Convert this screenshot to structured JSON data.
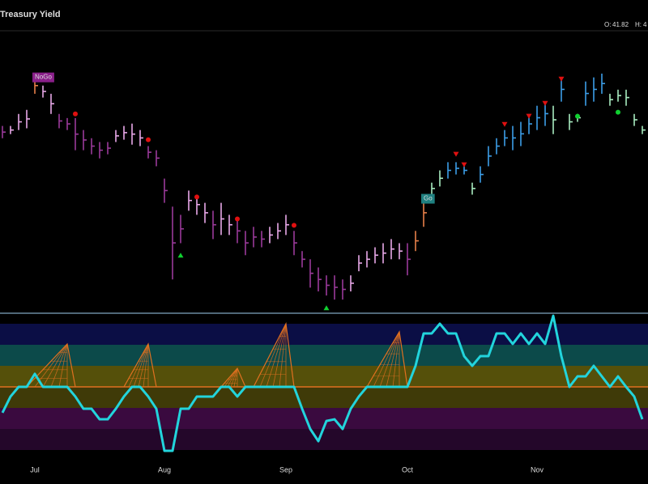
{
  "header": {
    "title": "Treasury Yield",
    "ohlc": [
      {
        "label": "O:",
        "value": 41.82
      },
      {
        "label": "H:",
        "value": "4"
      }
    ]
  },
  "chart_data": [
    {
      "type": "ohlc",
      "ylim": [
        35.45,
        45.0
      ],
      "high": [
        41.8,
        41.8,
        42.21,
        42.35,
        43.46,
        43.18,
        42.9,
        42.21,
        42.07,
        42.07,
        41.66,
        41.38,
        41.25,
        41.25,
        41.66,
        41.8,
        41.88,
        41.66,
        41.11,
        40.97,
        40.0,
        39.04,
        38.76,
        39.59,
        39.45,
        39.17,
        38.9,
        39.17,
        38.76,
        38.62,
        38.21,
        38.35,
        38.21,
        38.35,
        38.48,
        38.76,
        38.21,
        37.52,
        37.24,
        36.96,
        36.69,
        36.69,
        36.55,
        36.69,
        37.38,
        37.52,
        37.65,
        37.79,
        37.93,
        37.79,
        37.79,
        38.21,
        39.31,
        39.86,
        40.28,
        40.56,
        40.56,
        40.42,
        39.86,
        40.42,
        41.11,
        41.38,
        41.66,
        41.8,
        41.94,
        42.21,
        42.49,
        42.63,
        42.49,
        43.46,
        42.21,
        42.21,
        43.32,
        43.46,
        43.59,
        42.9,
        43.04,
        43.04,
        42.21,
        41.8
      ],
      "low": [
        41.38,
        41.52,
        41.66,
        41.72,
        42.9,
        42.77,
        42.21,
        41.72,
        41.66,
        40.97,
        40.97,
        40.83,
        40.69,
        40.83,
        41.25,
        41.33,
        41.16,
        41.11,
        40.69,
        40.42,
        39.17,
        36.55,
        37.79,
        38.9,
        38.76,
        38.48,
        37.93,
        38.07,
        38.07,
        37.79,
        37.38,
        37.65,
        37.65,
        37.79,
        37.93,
        38.07,
        37.38,
        36.96,
        36.27,
        36.14,
        36.0,
        35.86,
        35.86,
        36.14,
        36.83,
        36.96,
        37.1,
        37.1,
        37.24,
        37.24,
        36.69,
        37.52,
        38.35,
        39.45,
        39.73,
        40.0,
        40.14,
        40.14,
        39.45,
        39.86,
        40.42,
        40.83,
        41.11,
        40.97,
        41.11,
        41.52,
        41.66,
        41.8,
        41.52,
        42.63,
        41.66,
        41.94,
        42.49,
        42.63,
        42.9,
        42.49,
        42.63,
        42.49,
        41.8,
        41.52
      ],
      "close": [
        41.59,
        41.66,
        41.94,
        42.04,
        43.18,
        42.98,
        42.56,
        41.97,
        41.87,
        41.52,
        41.32,
        41.11,
        40.97,
        41.04,
        41.46,
        41.57,
        41.52,
        41.39,
        40.9,
        40.7,
        39.59,
        37.8,
        38.28,
        39.25,
        39.11,
        38.83,
        38.42,
        38.62,
        38.42,
        38.21,
        37.8,
        38.0,
        37.93,
        38.07,
        38.21,
        38.42,
        37.8,
        37.24,
        36.76,
        36.55,
        36.35,
        36.28,
        36.21,
        36.42,
        37.11,
        37.24,
        37.38,
        37.45,
        37.59,
        37.52,
        37.24,
        37.87,
        38.83,
        39.66,
        40.01,
        40.28,
        40.35,
        40.28,
        39.66,
        40.14,
        40.77,
        41.11,
        41.39,
        41.39,
        41.53,
        41.87,
        42.08,
        42.22,
        42.01,
        43.05,
        41.94,
        42.08,
        42.91,
        43.05,
        43.25,
        42.7,
        42.84,
        42.77,
        42.01,
        41.66
      ],
      "bar_colors": [
        "#9a3a9a",
        "#e8a8e8",
        "#e8a8e8",
        "#e8a8e8",
        "#e8804a",
        "#e8a8e8",
        "#e8a8e8",
        "#9a3a9a",
        "#9a3a9a",
        "#9a3a9a",
        "#9a3a9a",
        "#9a3a9a",
        "#9a3a9a",
        "#9a3a9a",
        "#e8a8e8",
        "#e8a8e8",
        "#e8a8e8",
        "#e8a8e8",
        "#9a3a9a",
        "#9a3a9a",
        "#9a3a9a",
        "#9a3a9a",
        "#9a3a9a",
        "#e8a8e8",
        "#e8a8e8",
        "#e8a8e8",
        "#9a3a9a",
        "#e8a8e8",
        "#e8a8e8",
        "#9a3a9a",
        "#9a3a9a",
        "#9a3a9a",
        "#9a3a9a",
        "#e8a8e8",
        "#e8a8e8",
        "#e8a8e8",
        "#9a3a9a",
        "#9a3a9a",
        "#9a3a9a",
        "#9a3a9a",
        "#9a3a9a",
        "#9a3a9a",
        "#9a3a9a",
        "#e8a8e8",
        "#e8a8e8",
        "#e8a8e8",
        "#e8a8e8",
        "#e8a8e8",
        "#e8a8e8",
        "#e8a8e8",
        "#9a3a9a",
        "#e8804a",
        "#e8804a",
        "#a8ecc0",
        "#a8ecc0",
        "#3c9ee8",
        "#3c9ee8",
        "#3c9ee8",
        "#a8ecc0",
        "#3c9ee8",
        "#3c9ee8",
        "#3c9ee8",
        "#3c9ee8",
        "#3c9ee8",
        "#3c9ee8",
        "#3c9ee8",
        "#3c9ee8",
        "#3c9ee8",
        "#a8ecc0",
        "#3c9ee8",
        "#a8ecc0",
        "#a8ecc0",
        "#3c9ee8",
        "#3c9ee8",
        "#3c9ee8",
        "#a8ecc0",
        "#a8ecc0",
        "#a8ecc0",
        "#a8ecc0",
        "#a8ecc0"
      ],
      "markers": [
        {
          "index": 9,
          "value": 42.21,
          "shape": "circle",
          "color": "#e01010"
        },
        {
          "index": 18,
          "value": 41.33,
          "shape": "circle",
          "color": "#e01010"
        },
        {
          "index": 24,
          "value": 39.37,
          "shape": "circle",
          "color": "#e01010"
        },
        {
          "index": 29,
          "value": 38.62,
          "shape": "circle",
          "color": "#e01010"
        },
        {
          "index": 36,
          "value": 38.4,
          "shape": "circle",
          "color": "#e01010"
        },
        {
          "index": 56,
          "value": 40.83,
          "shape": "triangle-down",
          "color": "#e01010"
        },
        {
          "index": 57,
          "value": 40.47,
          "shape": "triangle-down",
          "color": "#e01010"
        },
        {
          "index": 62,
          "value": 41.85,
          "shape": "triangle-down",
          "color": "#e01010"
        },
        {
          "index": 65,
          "value": 42.13,
          "shape": "triangle-down",
          "color": "#e01010"
        },
        {
          "index": 67,
          "value": 42.57,
          "shape": "triangle-down",
          "color": "#e01010"
        },
        {
          "index": 69,
          "value": 43.4,
          "shape": "triangle-down",
          "color": "#e01010"
        },
        {
          "index": 71,
          "value": 42.13,
          "shape": "circle",
          "color": "#10d030"
        },
        {
          "index": 76,
          "value": 42.27,
          "shape": "circle",
          "color": "#10d030"
        },
        {
          "index": 22,
          "value": 37.38,
          "shape": "triangle-up",
          "color": "#10d030"
        },
        {
          "index": 40,
          "value": 35.58,
          "shape": "triangle-up",
          "color": "#10d030"
        }
      ],
      "annotations": [
        {
          "text": "NoGo",
          "index": 4,
          "color": "#8a1f8a"
        },
        {
          "text": "Go",
          "index": 52,
          "color": "#1f8080"
        }
      ]
    },
    {
      "type": "line",
      "categories": [
        null,
        null,
        null,
        null,
        "Jul",
        null,
        null,
        null,
        null,
        null,
        null,
        null,
        null,
        null,
        null,
        null,
        null,
        null,
        null,
        null,
        "Aug",
        null,
        null,
        null,
        null,
        null,
        null,
        null,
        null,
        null,
        null,
        null,
        null,
        null,
        null,
        "Sep",
        null,
        null,
        null,
        null,
        null,
        null,
        null,
        null,
        null,
        null,
        null,
        null,
        null,
        null,
        "Oct",
        null,
        null,
        null,
        null,
        null,
        null,
        null,
        null,
        null,
        null,
        null,
        null,
        null,
        null,
        null,
        "Nov",
        null,
        null,
        null,
        null,
        null,
        null,
        null,
        null,
        null,
        null,
        null,
        null,
        null
      ],
      "values": [
        -1.23,
        -0.46,
        0,
        0,
        0.62,
        0,
        0,
        0,
        0,
        -0.46,
        -1.04,
        -1.04,
        -1.54,
        -1.54,
        -1.04,
        -0.46,
        0,
        0,
        -0.46,
        -1.04,
        -3.04,
        -3.04,
        -1.04,
        -1.04,
        -0.46,
        -0.46,
        -0.46,
        0,
        0,
        -0.46,
        0,
        0,
        0,
        0,
        0,
        0,
        0,
        -1.04,
        -2,
        -2.58,
        -1.62,
        -1.54,
        -2,
        -1.04,
        -0.46,
        0,
        0,
        0,
        0,
        0,
        0,
        1,
        2.54,
        2.54,
        3,
        2.54,
        2.54,
        1.46,
        1,
        1.46,
        1.46,
        2.54,
        2.54,
        2.04,
        2.54,
        2.04,
        2.54,
        2.04,
        3.38,
        1.46,
        0,
        0.5,
        0.5,
        1,
        0.5,
        0,
        0.5,
        0,
        -0.46,
        -1.54
      ],
      "color": "#22d4dc",
      "ylim": [
        -3.5,
        3.5
      ],
      "bands": [
        {
          "from": 2,
          "to": 3,
          "color": "#0b0e45"
        },
        {
          "from": 1,
          "to": 2,
          "color": "#0c4a4a"
        },
        {
          "from": 0,
          "to": 1,
          "color": "#55500a"
        },
        {
          "from": -1,
          "to": 0,
          "color": "#3f3a08"
        },
        {
          "from": -2,
          "to": -1,
          "color": "#3a0a3f"
        },
        {
          "from": -3,
          "to": -2,
          "color": "#24072a"
        }
      ],
      "zero_line_color": "#e07020",
      "spikes": [
        {
          "from": 3,
          "peak": 8,
          "to": 9,
          "value": 2.04
        },
        {
          "from": 15,
          "peak": 18,
          "to": 19,
          "value": 2.04
        },
        {
          "from": 27,
          "peak": 29,
          "to": 30,
          "value": 0.88
        },
        {
          "from": 31,
          "peak": 35,
          "to": 36,
          "value": 3
        },
        {
          "from": 45,
          "peak": 49,
          "to": 50,
          "value": 2.62
        }
      ],
      "spike_color": "#e07020"
    }
  ]
}
